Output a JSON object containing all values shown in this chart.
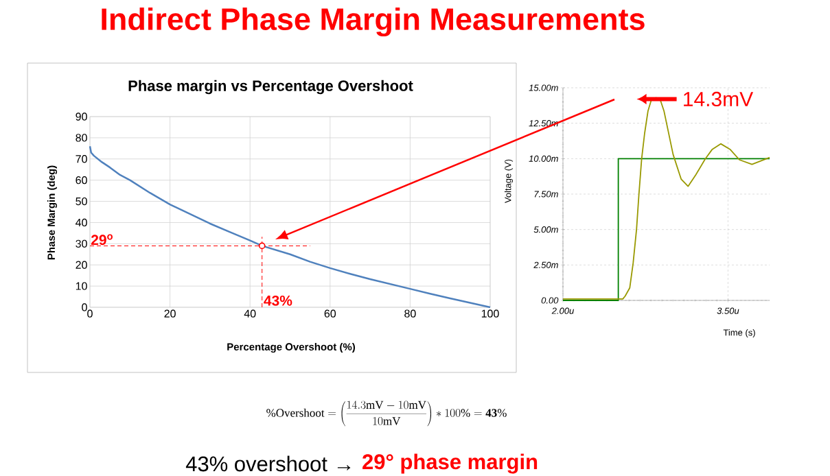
{
  "chart_data": [
    {
      "type": "line",
      "title": "Phase margin vs Percentage Overshoot",
      "xlabel": "Percentage Overshoot (%)",
      "ylabel": "Phase Margin (deg)",
      "xlim": [
        0,
        100
      ],
      "ylim": [
        0,
        90
      ],
      "xticks": [
        0,
        20,
        40,
        60,
        80,
        100
      ],
      "yticks": [
        0,
        10,
        20,
        30,
        40,
        50,
        60,
        70,
        80,
        90
      ],
      "grid": true,
      "series": [
        {
          "type": "line",
          "color": "#4f81bd",
          "x": [
            0,
            0.3,
            1,
            3,
            5,
            7.5,
            10,
            15,
            20,
            25,
            30,
            35,
            40,
            43,
            50,
            55,
            60,
            65,
            70,
            75,
            80,
            85,
            90,
            95,
            100
          ],
          "values": [
            76,
            73,
            71.5,
            68.5,
            66,
            62.5,
            60,
            54,
            48.5,
            44,
            39.5,
            35.5,
            31.5,
            29,
            25,
            21.5,
            18.5,
            15.8,
            13.3,
            11,
            8.7,
            6.4,
            4.2,
            2.1,
            0
          ]
        },
        {
          "type": "scatter",
          "color": "#ff0000",
          "marker": "circle",
          "x": [
            43
          ],
          "values": [
            29
          ]
        }
      ],
      "ref_lines": [
        {
          "axis": "y",
          "value": 29,
          "label": "29$^{o}$",
          "color": "#ff0000",
          "line_style": "dashed"
        },
        {
          "axis": "x",
          "value": 43,
          "label": "43%",
          "color": "#ff0000",
          "line_style": "dashed"
        }
      ]
    },
    {
      "type": "line",
      "xlabel": "Time (s)",
      "ylabel": "Voltage (V)",
      "xlim": [
        2.0,
        3.878
      ],
      "ylim": [
        0,
        15
      ],
      "xticks": [
        {
          "value": 2.0,
          "label": "2.00u"
        },
        {
          "value": 3.5,
          "label": "3.50u"
        }
      ],
      "yticks": [
        {
          "value": 0,
          "label": "0.00"
        },
        {
          "value": 2.5,
          "label": "2.50m"
        },
        {
          "value": 5,
          "label": "5.00m"
        },
        {
          "value": 7.5,
          "label": "7.50m"
        },
        {
          "value": 10,
          "label": "10.00m"
        },
        {
          "value": 12.5,
          "label": "12.50m"
        },
        {
          "value": 15,
          "label": "15.00m"
        }
      ],
      "grid": true,
      "series": [
        {
          "type": "step",
          "color": "#008000",
          "x": [
            2.0,
            2.503,
            3.878
          ],
          "values": [
            0,
            10,
            10
          ]
        },
        {
          "type": "line",
          "color": "#999900",
          "x": [
            2.0,
            2.544,
            2.565,
            2.607,
            2.638,
            2.669,
            2.69,
            2.715,
            2.742,
            2.773,
            2.804,
            2.846,
            2.887,
            2.918,
            3.001,
            3.074,
            3.137,
            3.209,
            3.292,
            3.355,
            3.434,
            3.521,
            3.604,
            3.718,
            3.878
          ],
          "values": [
            0.1,
            0.1,
            0.3,
            0.88,
            2.64,
            5.04,
            7.44,
            9.97,
            11.77,
            13.37,
            14.17,
            14.3,
            14.09,
            13.37,
            10.3,
            8.56,
            8.05,
            8.88,
            9.97,
            10.64,
            11.05,
            10.64,
            9.92,
            9.6,
            10.08
          ]
        }
      ],
      "annotations": [
        {
          "text": "14.3mV",
          "x": 2.846,
          "y": 14.3
        }
      ]
    },
    {
      "type": "other",
      "title": "Indirect Phase Margin Measurements",
      "annotations": [
        "\\%\\mathrm{Overshoot} = \\left(\\frac{14.3\\mathrm{mV} - 10\\mathrm{mV}}{10\\mathrm{mV}}\\right) * 100\\% = \\mathbf{43\\%}",
        "43% overshoot →",
        "29° phase margin"
      ]
    }
  ]
}
